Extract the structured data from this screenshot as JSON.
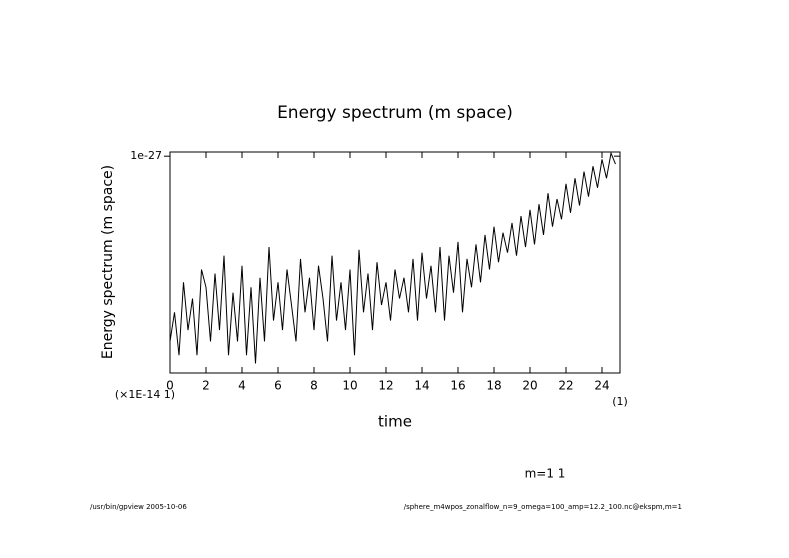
{
  "chart_data": {
    "type": "line",
    "title": "Energy spectrum (m space)",
    "y_label": "Energy spectrum (m space)",
    "x_label": "time",
    "x_scale_note": "(×1E-14 1)",
    "x_unit_note": "(1)",
    "annotation": "m=1 1",
    "footer_left": "/usr/bin/gpview 2005-10-06",
    "footer_right": "/sphere_m4wpos_zonalflow_n=9_omega=100_amp=12.2_100.nc@ekspm,m=1",
    "y_log": true,
    "xlim": [
      0,
      25
    ],
    "xticks": [
      0,
      2,
      4,
      6,
      8,
      10,
      12,
      14,
      16,
      18,
      20,
      22,
      24
    ],
    "ylim": [
      3e-29,
      1.07e-27
    ],
    "yticks": [
      1e-27
    ],
    "x": [
      0,
      0.25,
      0.5,
      0.75,
      1,
      1.25,
      1.5,
      1.75,
      2,
      2.25,
      2.5,
      2.75,
      3,
      3.25,
      3.5,
      3.75,
      4,
      4.25,
      4.5,
      4.75,
      5,
      5.25,
      5.5,
      5.75,
      6,
      6.25,
      6.5,
      6.75,
      7,
      7.25,
      7.5,
      7.75,
      8,
      8.25,
      8.5,
      8.75,
      9,
      9.25,
      9.5,
      9.75,
      10,
      10.25,
      10.5,
      10.75,
      11,
      11.25,
      11.5,
      11.75,
      12,
      12.25,
      12.5,
      12.75,
      13,
      13.25,
      13.5,
      13.75,
      14,
      14.25,
      14.5,
      14.75,
      15,
      15.25,
      15.5,
      15.75,
      16,
      16.25,
      16.5,
      16.75,
      17,
      17.25,
      17.5,
      17.75,
      18,
      18.25,
      18.5,
      18.75,
      19,
      19.25,
      19.5,
      19.75,
      20,
      20.25,
      20.5,
      20.75,
      21,
      21.25,
      21.5,
      21.75,
      22,
      22.25,
      22.5,
      22.75,
      23,
      23.25,
      23.5,
      23.75,
      24,
      24.25,
      24.5,
      24.75
    ],
    "series": [
      {
        "color": "#000000",
        "values": [
          5e-29,
          8e-29,
          4e-29,
          1.3e-28,
          6e-29,
          1e-28,
          4e-29,
          1.6e-28,
          1.2e-28,
          5e-29,
          1.5e-28,
          6e-29,
          2e-28,
          4e-29,
          1.1e-28,
          5e-29,
          1.7e-28,
          4e-29,
          1.2e-28,
          3.5e-29,
          1.4e-28,
          5e-29,
          2.3e-28,
          7e-29,
          1.3e-28,
          6e-29,
          1.6e-28,
          9e-29,
          5e-29,
          1.9e-28,
          8e-29,
          1.4e-28,
          6e-29,
          1.7e-28,
          1e-28,
          5e-29,
          2e-28,
          7e-29,
          1.3e-28,
          6e-29,
          1.6e-28,
          4e-29,
          2.2e-28,
          8e-29,
          1.5e-28,
          6e-29,
          1.8e-28,
          9e-29,
          1.3e-28,
          7e-29,
          1.6e-28,
          1e-28,
          1.4e-28,
          8e-29,
          1.9e-28,
          7e-29,
          2.1e-28,
          1e-28,
          1.7e-28,
          8e-29,
          2.3e-28,
          7e-29,
          2e-28,
          1.1e-28,
          2.5e-28,
          8e-29,
          1.9e-28,
          1.2e-28,
          2.4e-28,
          1.3e-28,
          2.8e-28,
          1.6e-28,
          3.2e-28,
          1.8e-28,
          2.9e-28,
          2.1e-28,
          3.4e-28,
          2e-28,
          3.8e-28,
          2.3e-28,
          4.2e-28,
          2.4e-28,
          4.6e-28,
          2.8e-28,
          5.5e-28,
          3.2e-28,
          5e-28,
          3.6e-28,
          6.4e-28,
          4e-28,
          7e-28,
          4.5e-28,
          7.8e-28,
          5.2e-28,
          8.5e-28,
          6e-28,
          9.5e-28,
          7e-28,
          1.05e-27,
          8.8e-28
        ]
      }
    ]
  }
}
